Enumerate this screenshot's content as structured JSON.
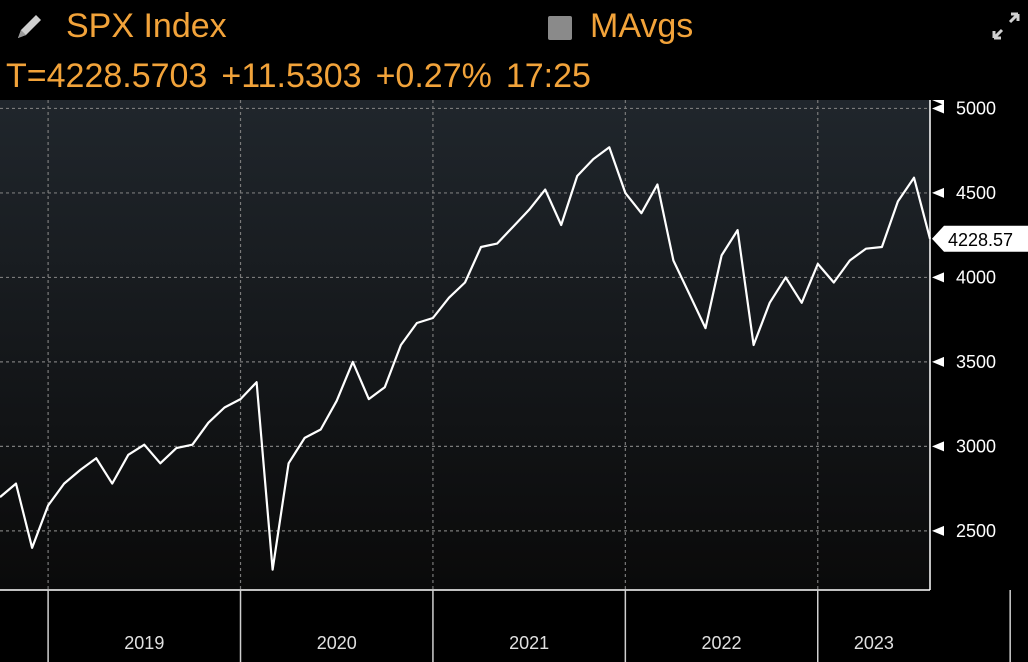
{
  "header": {
    "title": "SPX Index",
    "mavgs_label": "MAvgs",
    "pencil_icon": "pencil-icon",
    "expand_icon": "expand-icon",
    "quote": {
      "prefix": "T=4228.5703",
      "change": "+11.5303",
      "pct": "+0.27%",
      "time": "17:25"
    }
  },
  "colors": {
    "accent": "#f2a33a",
    "line": "#ffffff",
    "background": "#000000",
    "plot_top": "#20262c",
    "grid": "#7a7a7a"
  },
  "chart_data": {
    "type": "line",
    "title": "SPX Index",
    "xlabel": "",
    "ylabel": "",
    "x_ticks": [
      "2019",
      "2020",
      "2021",
      "2022",
      "2023"
    ],
    "y_ticks": [
      2500,
      3000,
      3500,
      4000,
      4500,
      5000
    ],
    "ylim": [
      2150,
      5050
    ],
    "xlim": [
      "2018-10",
      "2023-08"
    ],
    "grid": true,
    "last_value_label": "4228.57",
    "series": [
      {
        "x": [
          "2018-10",
          "2018-11",
          "2018-12",
          "2019-01",
          "2019-02",
          "2019-03",
          "2019-04",
          "2019-05",
          "2019-06",
          "2019-07",
          "2019-08",
          "2019-09",
          "2019-10",
          "2019-11",
          "2019-12",
          "2020-01",
          "2020-02",
          "2020-03",
          "2020-04",
          "2020-05",
          "2020-06",
          "2020-07",
          "2020-08",
          "2020-09",
          "2020-10",
          "2020-11",
          "2020-12",
          "2021-01",
          "2021-02",
          "2021-03",
          "2021-04",
          "2021-05",
          "2021-06",
          "2021-07",
          "2021-08",
          "2021-09",
          "2021-10",
          "2021-11",
          "2021-12",
          "2022-01",
          "2022-02",
          "2022-03",
          "2022-04",
          "2022-05",
          "2022-06",
          "2022-07",
          "2022-08",
          "2022-09",
          "2022-10",
          "2022-11",
          "2022-12",
          "2023-01",
          "2023-02",
          "2023-03",
          "2023-04",
          "2023-05",
          "2023-06",
          "2023-07",
          "2023-08"
        ],
        "values": [
          2700,
          2780,
          2400,
          2650,
          2780,
          2860,
          2930,
          2780,
          2950,
          3010,
          2900,
          2990,
          3010,
          3140,
          3230,
          3280,
          3380,
          2270,
          2900,
          3050,
          3100,
          3270,
          3500,
          3280,
          3350,
          3600,
          3730,
          3760,
          3880,
          3970,
          4180,
          4200,
          4300,
          4400,
          4520,
          4310,
          4600,
          4700,
          4770,
          4500,
          4380,
          4550,
          4100,
          3900,
          3700,
          4130,
          4280,
          3600,
          3850,
          4000,
          3850,
          4080,
          3970,
          4100,
          4170,
          4180,
          4450,
          4590,
          4228.57
        ]
      }
    ]
  }
}
